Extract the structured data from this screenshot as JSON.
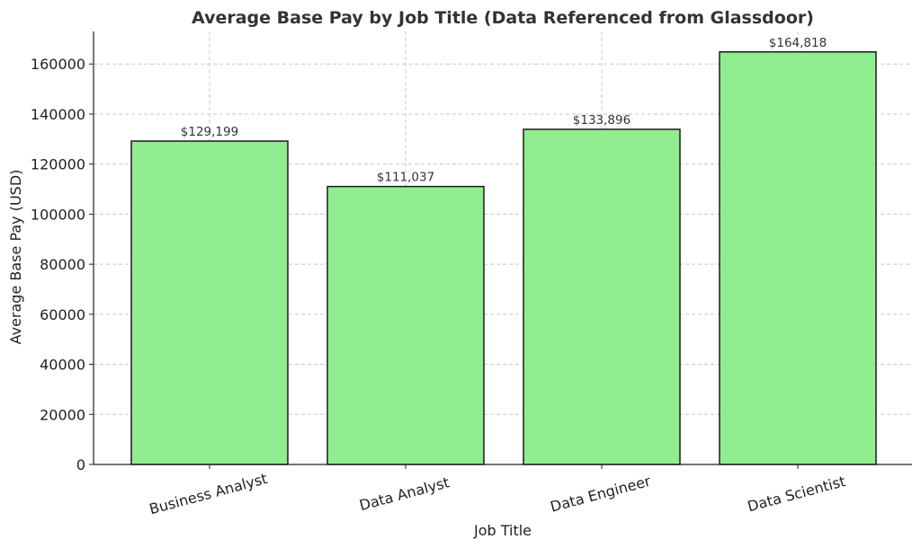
{
  "chart_data": {
    "type": "bar",
    "title": "Average Base Pay by Job Title (Data Referenced from Glassdoor)",
    "xlabel": "Job Title",
    "ylabel": "Average Base Pay (USD)",
    "categories": [
      "Business Analyst",
      "Data Analyst",
      "Data Engineer",
      "Data Scientist"
    ],
    "values": [
      129199,
      111037,
      133896,
      164818
    ],
    "data_labels": [
      "$129,199",
      "$111,037",
      "$133,896",
      "$164,818"
    ],
    "ylim": [
      0,
      173000
    ],
    "yticks": [
      0,
      20000,
      40000,
      60000,
      80000,
      100000,
      120000,
      140000,
      160000
    ],
    "ytick_labels": [
      "0",
      "20000",
      "40000",
      "60000",
      "80000",
      "100000",
      "120000",
      "140000",
      "160000"
    ],
    "grid": true,
    "bar_color": "#90ee90",
    "edge_color": "#1a1a1a"
  }
}
